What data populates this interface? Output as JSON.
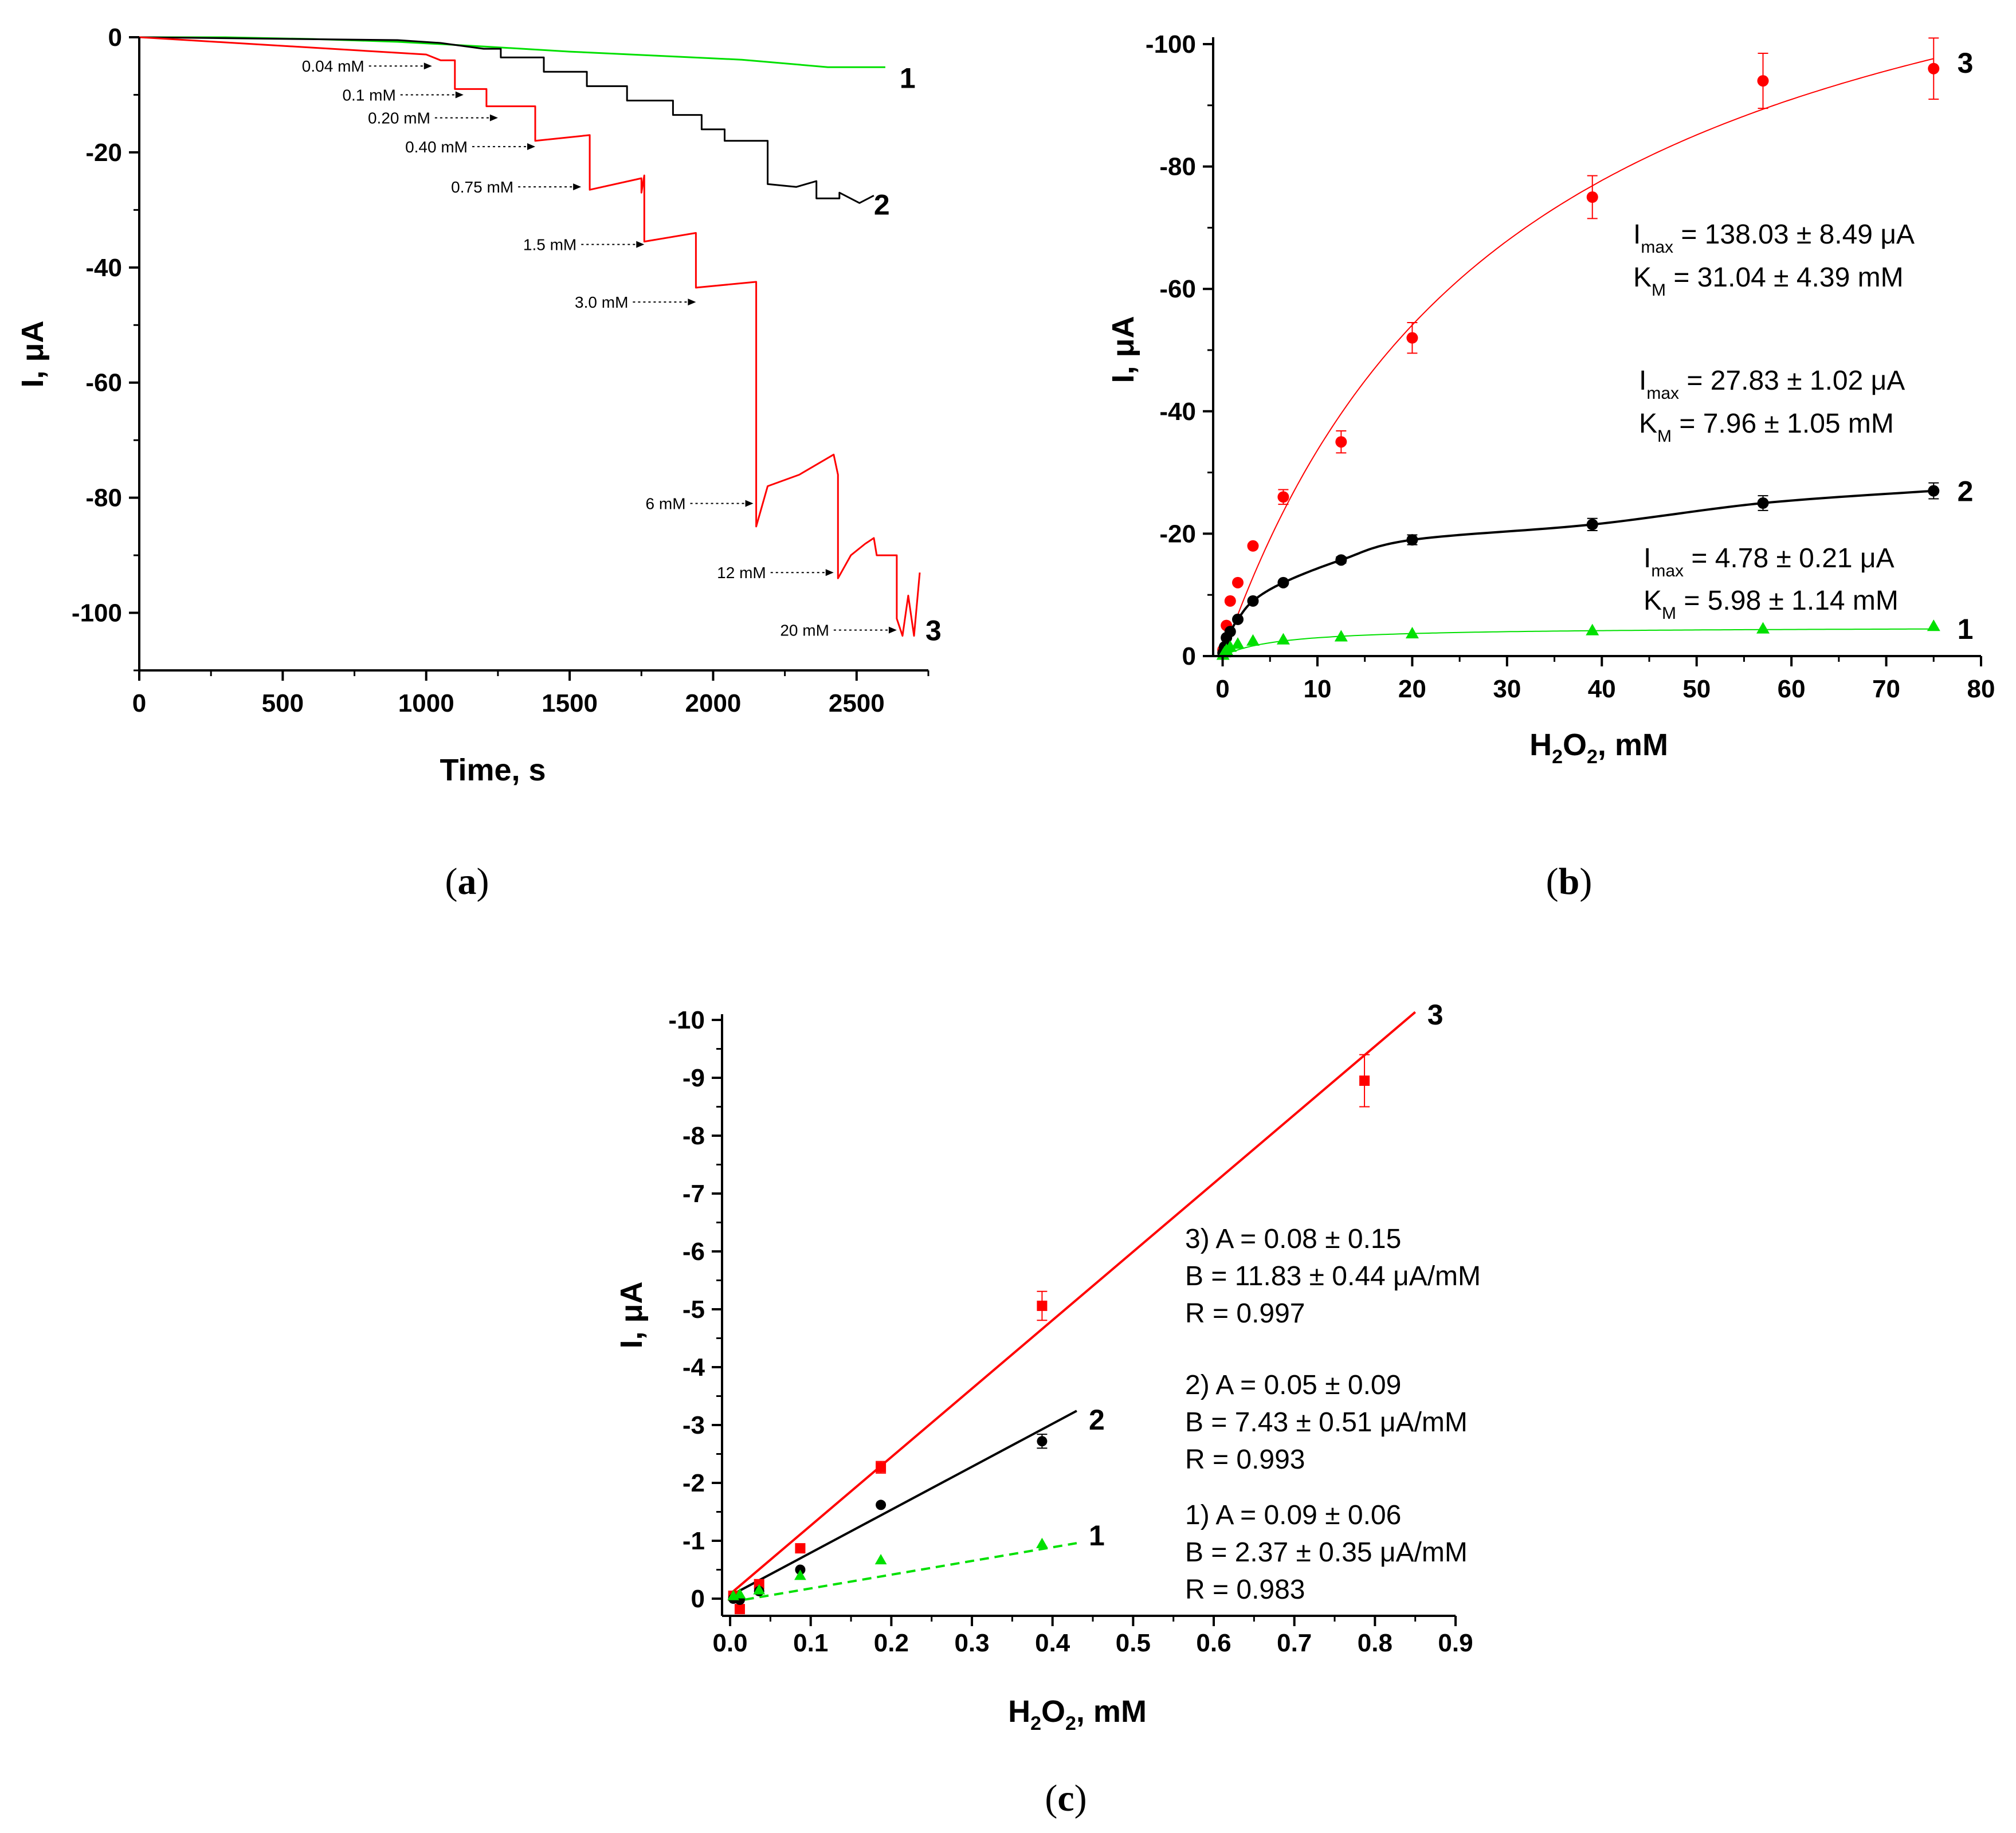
{
  "colors": {
    "curve1": "#00e000",
    "curve2": "#000000",
    "curve3": "#ff0000"
  },
  "chart_data": [
    {
      "id": "a",
      "type": "line",
      "panel_label": "a",
      "xlabel": "Time, s",
      "ylabel": "I, μA",
      "xlim": [
        0,
        2750
      ],
      "ylim": [
        -110,
        0
      ],
      "y_inverted": true,
      "xticks": [
        0,
        500,
        1000,
        1500,
        2000,
        2500
      ],
      "yticks": [
        0,
        -20,
        -40,
        -60,
        -80,
        -100
      ],
      "series": [
        {
          "name": "1",
          "color": "#00e000",
          "points": [
            [
              0,
              0
            ],
            [
              300,
              0
            ],
            [
              600,
              -0.3
            ],
            [
              900,
              -0.8
            ],
            [
              1200,
              -1.6
            ],
            [
              1500,
              -2.5
            ],
            [
              1800,
              -3.2
            ],
            [
              2100,
              -3.9
            ],
            [
              2400,
              -5.2
            ],
            [
              2600,
              -5.2
            ]
          ]
        },
        {
          "name": "2",
          "color": "#000000",
          "points": [
            [
              0,
              0
            ],
            [
              900,
              -0.5
            ],
            [
              1050,
              -1
            ],
            [
              1200,
              -2
            ],
            [
              1260,
              -2
            ],
            [
              1260,
              -3.5
            ],
            [
              1410,
              -3.5
            ],
            [
              1410,
              -6
            ],
            [
              1560,
              -6
            ],
            [
              1560,
              -8.5
            ],
            [
              1700,
              -8.5
            ],
            [
              1700,
              -11
            ],
            [
              1860,
              -11
            ],
            [
              1860,
              -13.5
            ],
            [
              1960,
              -13.5
            ],
            [
              1960,
              -16
            ],
            [
              2040,
              -16
            ],
            [
              2040,
              -18
            ],
            [
              2190,
              -18
            ],
            [
              2190,
              -25.5
            ],
            [
              2290,
              -26
            ],
            [
              2360,
              -25
            ],
            [
              2360,
              -28
            ],
            [
              2440,
              -28
            ],
            [
              2440,
              -27
            ],
            [
              2510,
              -28.8
            ],
            [
              2560,
              -27.5
            ]
          ]
        },
        {
          "name": "3",
          "color": "#ff0000",
          "points": [
            [
              0,
              0
            ],
            [
              1000,
              -3
            ],
            [
              1050,
              -4
            ],
            [
              1100,
              -4
            ],
            [
              1100,
              -9
            ],
            [
              1210,
              -9
            ],
            [
              1210,
              -12
            ],
            [
              1380,
              -12
            ],
            [
              1380,
              -18
            ],
            [
              1570,
              -17
            ],
            [
              1570,
              -26.5
            ],
            [
              1750,
              -24.5
            ],
            [
              1750,
              -27
            ],
            [
              1760,
              -24
            ],
            [
              1760,
              -35.5
            ],
            [
              1940,
              -34
            ],
            [
              1940,
              -43.5
            ],
            [
              2150,
              -42.5
            ],
            [
              2150,
              -85
            ],
            [
              2190,
              -78
            ],
            [
              2300,
              -76
            ],
            [
              2420,
              -72.5
            ],
            [
              2435,
              -76
            ],
            [
              2435,
              -94
            ],
            [
              2480,
              -90
            ],
            [
              2530,
              -88
            ],
            [
              2560,
              -87
            ],
            [
              2570,
              -90
            ],
            [
              2640,
              -90
            ],
            [
              2640,
              -101
            ],
            [
              2660,
              -104
            ],
            [
              2680,
              -97
            ],
            [
              2700,
              -104
            ],
            [
              2720,
              -93
            ]
          ]
        }
      ],
      "annotations": [
        {
          "text": "0.04 mM",
          "x": 1020,
          "y": -5
        },
        {
          "text": "0.1 mM",
          "x": 1130,
          "y": -10
        },
        {
          "text": "0.20 mM",
          "x": 1250,
          "y": -14
        },
        {
          "text": "0.40 mM",
          "x": 1380,
          "y": -19
        },
        {
          "text": "0.75 mM",
          "x": 1540,
          "y": -26
        },
        {
          "text": "1.5 mM",
          "x": 1760,
          "y": -36
        },
        {
          "text": "3.0 mM",
          "x": 1940,
          "y": -46
        },
        {
          "text": "6 mM",
          "x": 2140,
          "y": -81
        },
        {
          "text": "12 mM",
          "x": 2420,
          "y": -93
        },
        {
          "text": "20 mM",
          "x": 2640,
          "y": -103
        }
      ],
      "curve_labels": [
        {
          "text": "1",
          "x": 2650,
          "y": -7
        },
        {
          "text": "2",
          "x": 2560,
          "y": -29
        },
        {
          "text": "3",
          "x": 2740,
          "y": -103
        }
      ]
    },
    {
      "id": "b",
      "type": "scatter",
      "panel_label": "b",
      "xlabel_main": "H",
      "xlabel_sub1": "2",
      "xlabel_mid": "O",
      "xlabel_sub2": "2",
      "xlabel_end": ", mM",
      "ylabel": "I, μA",
      "xlim": [
        -1,
        80
      ],
      "ylim": [
        -100,
        0
      ],
      "y_inverted": true,
      "xticks": [
        0,
        10,
        20,
        30,
        40,
        50,
        60,
        70,
        80
      ],
      "yticks": [
        0,
        -20,
        -40,
        -60,
        -80,
        -100
      ],
      "series": [
        {
          "name": "3",
          "color": "#ff0000",
          "marker": "circle",
          "fit": "mm",
          "imax": 138.03,
          "km": 31.04,
          "fit_width": 2,
          "x": [
            0.04,
            0.4,
            0.8,
            1.6,
            3.2,
            6.4,
            12.5,
            20,
            39,
            57,
            75
          ],
          "y": [
            -1,
            -5,
            -9,
            -12,
            -18,
            -26,
            -35,
            -52,
            -75,
            -94,
            -96
          ],
          "err": [
            0,
            0,
            0,
            0,
            0,
            1.2,
            1.8,
            2.5,
            3.5,
            4.5,
            5
          ]
        },
        {
          "name": "2",
          "color": "#000000",
          "marker": "circle",
          "fit": "pchip",
          "fit_width": 4,
          "x": [
            0.04,
            0.2,
            0.4,
            0.8,
            1.6,
            3.2,
            6.4,
            12.5,
            20,
            39,
            57,
            75
          ],
          "y": [
            -0.5,
            -1.5,
            -3,
            -4,
            -6,
            -9,
            -12,
            -15.7,
            -19,
            -21.5,
            -25,
            -27
          ],
          "err": [
            0,
            0,
            0,
            0,
            0,
            0,
            0,
            0.5,
            0.8,
            1,
            1.2,
            1.3
          ]
        },
        {
          "name": "1",
          "color": "#00e000",
          "marker": "triangle",
          "fit": "mm",
          "imax": 4.78,
          "km": 5.98,
          "fit_width": 2,
          "x": [
            0.04,
            0.2,
            0.4,
            0.8,
            1.6,
            3.2,
            6.4,
            12.5,
            20,
            39,
            57,
            75
          ],
          "y": [
            -0.2,
            -0.6,
            -1,
            -1.5,
            -2,
            -2.5,
            -2.7,
            -3.2,
            -3.7,
            -4.2,
            -4.5,
            -4.9
          ],
          "err": [
            0,
            0,
            0,
            0,
            0,
            0,
            0,
            0,
            0,
            0,
            0,
            0
          ]
        }
      ],
      "curve_labels": [
        {
          "text": "3",
          "x": 77.5,
          "y": -97
        },
        {
          "text": "2",
          "x": 77.5,
          "y": -27
        },
        {
          "text": "1",
          "x": 77.5,
          "y": -4.5
        }
      ],
      "fit_results": [
        {
          "imax_label": "I",
          "imax_sub": "max",
          "imax_text": " = 138.03 ± 8.49 μA",
          "km_label": "K",
          "km_sub": "M",
          "km_text": " = 31.04 ± 4.39 mM"
        },
        {
          "imax_label": "I",
          "imax_sub": "max",
          "imax_text": " = 27.83 ± 1.02 μA",
          "km_label": "K",
          "km_sub": "M",
          "km_text": " = 7.96 ± 1.05 mM"
        },
        {
          "imax_label": "I",
          "imax_sub": "max",
          "imax_text": " = 4.78 ± 0.21 μA",
          "km_label": "K",
          "km_sub": "M",
          "km_text": " = 5.98 ± 1.14 mM"
        }
      ]
    },
    {
      "id": "c",
      "type": "scatter",
      "panel_label": "c",
      "xlabel_main": "H",
      "xlabel_sub1": "2",
      "xlabel_mid": "O",
      "xlabel_sub2": "2",
      "xlabel_end": ", mM",
      "ylabel": "I, μA",
      "xlim": [
        -0.01,
        0.9
      ],
      "ylim": [
        -10,
        0.2
      ],
      "y_inverted": true,
      "xticks": [
        0.0,
        0.1,
        0.2,
        0.3,
        0.4,
        0.5,
        0.6,
        0.7,
        0.8,
        0.9
      ],
      "yticks": [
        0,
        -1,
        -2,
        -3,
        -4,
        -5,
        -6,
        -7,
        -8,
        -9,
        -10
      ],
      "series": [
        {
          "name": "3",
          "color": "#ff0000",
          "marker": "square",
          "intercept": 0.08,
          "slope": 11.83,
          "x_end": 0.85,
          "dashed": false,
          "x": [
            0.004,
            0.012,
            0.036,
            0.087,
            0.187,
            0.387,
            0.787
          ],
          "y": [
            -0.05,
            0.18,
            -0.25,
            -0.87,
            -2.27,
            -5.06,
            -8.95
          ],
          "err": [
            0,
            0,
            0,
            0,
            0.1,
            0.25,
            0.45
          ]
        },
        {
          "name": "2",
          "color": "#000000",
          "marker": "circle",
          "intercept": 0.05,
          "slope": 7.43,
          "x_end": 0.43,
          "dashed": false,
          "x": [
            0.004,
            0.012,
            0.036,
            0.087,
            0.187,
            0.387
          ],
          "y": [
            0,
            0.02,
            -0.13,
            -0.5,
            -1.62,
            -2.72
          ],
          "err": [
            0,
            0,
            0,
            0,
            0,
            0.12
          ]
        },
        {
          "name": "1",
          "color": "#00e000",
          "marker": "triangle",
          "intercept": 0.09,
          "slope": 2.37,
          "x_end": 0.43,
          "dashed": true,
          "x": [
            0.004,
            0.012,
            0.036,
            0.087,
            0.187,
            0.387
          ],
          "y": [
            -0.05,
            -0.08,
            -0.15,
            -0.4,
            -0.67,
            -0.95
          ],
          "err": [
            0,
            0,
            0,
            0,
            0,
            0
          ]
        }
      ],
      "curve_labels": [
        {
          "text": "3",
          "x": 0.865,
          "y": -10.1
        },
        {
          "text": "2",
          "x": 0.445,
          "y": -3.1
        },
        {
          "text": "1",
          "x": 0.445,
          "y": -1.1
        }
      ],
      "fit_results": [
        {
          "l1": "3) A = 0.08 ± 0.15",
          "l2": "B = 11.83 ± 0.44 μA/mM",
          "l3": "R = 0.997"
        },
        {
          "l1": "2) A = 0.05 ± 0.09",
          "l2": "B = 7.43 ± 0.51 μA/mM",
          "l3": "R = 0.993"
        },
        {
          "l1": "1) A = 0.09 ± 0.06",
          "l2": "B = 2.37 ± 0.35 μA/mM",
          "l3": "R = 0.983"
        }
      ]
    }
  ]
}
